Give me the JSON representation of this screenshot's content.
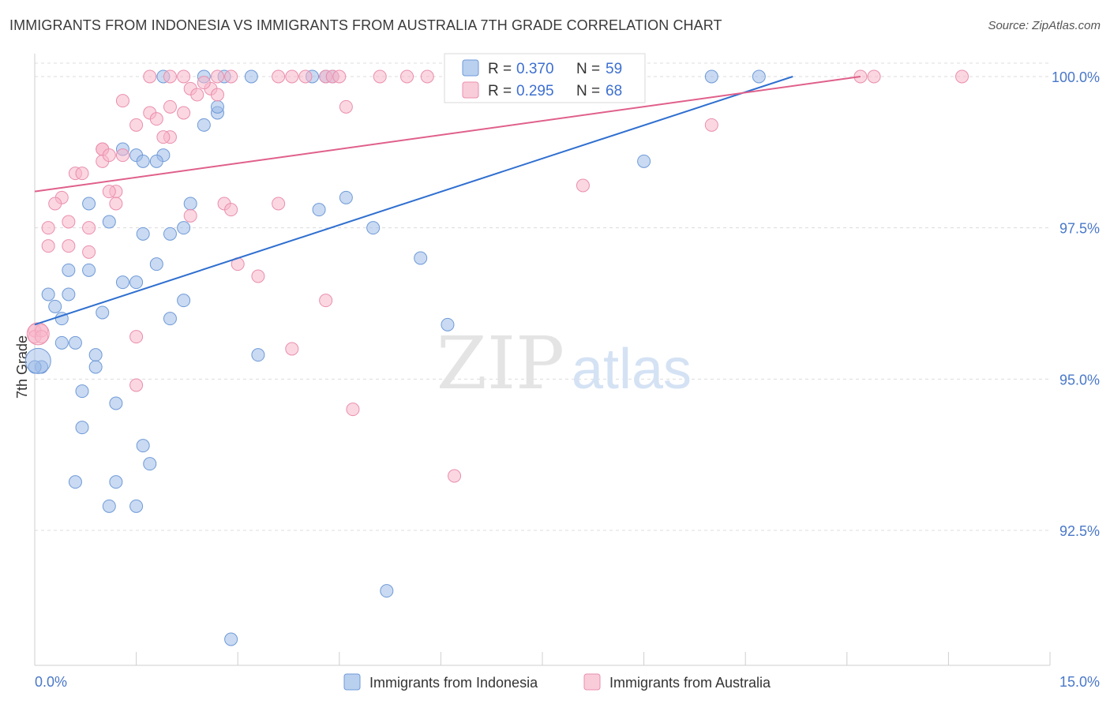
{
  "title": "IMMIGRANTS FROM INDONESIA VS IMMIGRANTS FROM AUSTRALIA 7TH GRADE CORRELATION CHART",
  "source": "Source: ZipAtlas.com",
  "watermark": {
    "zip": "ZIP",
    "atlas": "atlas"
  },
  "chart_data": {
    "type": "scatter",
    "title": "IMMIGRANTS FROM INDONESIA VS IMMIGRANTS FROM AUSTRALIA 7TH GRADE CORRELATION CHART",
    "xlabel": "",
    "ylabel": "7th Grade",
    "xlim": [
      0,
      15
    ],
    "ylim": [
      90.2,
      100.4
    ],
    "x_tick_labels": [
      {
        "value": 0,
        "label": "0.0%"
      },
      {
        "value": 15,
        "label": "15.0%"
      }
    ],
    "y_tick_labels": [
      {
        "value": 100,
        "label": "100.0%"
      },
      {
        "value": 97.5,
        "label": "97.5%"
      },
      {
        "value": 95,
        "label": "95.0%"
      },
      {
        "value": 92.5,
        "label": "92.5%"
      }
    ],
    "grid": true,
    "legend_position": "bottom",
    "series": [
      {
        "name": "Immigrants from Indonesia",
        "color": "#9dbce8",
        "stroke": "#6f9ad8",
        "line_color": "#2f6fd0",
        "R": "0.370",
        "N": "59",
        "trend": {
          "x0": 0,
          "y0": 95.9,
          "x1": 11.2,
          "y1": 100.0
        },
        "points": [
          [
            1.9,
            100.0
          ],
          [
            2.5,
            100.0
          ],
          [
            2.8,
            100.0
          ],
          [
            3.2,
            100.0
          ],
          [
            4.1,
            100.0
          ],
          [
            4.3,
            100.0
          ],
          [
            4.4,
            100.0
          ],
          [
            10.0,
            100.0
          ],
          [
            10.7,
            100.0
          ],
          [
            2.7,
            99.4
          ],
          [
            2.5,
            99.2
          ],
          [
            2.7,
            99.5
          ],
          [
            1.3,
            98.8
          ],
          [
            1.5,
            98.7
          ],
          [
            1.9,
            98.7
          ],
          [
            1.6,
            98.6
          ],
          [
            1.8,
            98.6
          ],
          [
            9.0,
            98.6
          ],
          [
            4.6,
            98.0
          ],
          [
            2.3,
            97.9
          ],
          [
            0.8,
            97.9
          ],
          [
            4.2,
            97.8
          ],
          [
            1.1,
            97.6
          ],
          [
            2.2,
            97.5
          ],
          [
            5.0,
            97.5
          ],
          [
            2.0,
            97.4
          ],
          [
            5.7,
            97.0
          ],
          [
            0.5,
            96.8
          ],
          [
            0.8,
            96.8
          ],
          [
            1.8,
            96.9
          ],
          [
            1.3,
            96.6
          ],
          [
            1.5,
            96.6
          ],
          [
            0.2,
            96.4
          ],
          [
            0.5,
            96.4
          ],
          [
            2.2,
            96.3
          ],
          [
            0.3,
            96.2
          ],
          [
            1.0,
            96.1
          ],
          [
            0.4,
            96.0
          ],
          [
            2.0,
            96.0
          ],
          [
            6.1,
            95.9
          ],
          [
            0.4,
            95.6
          ],
          [
            0.6,
            95.6
          ],
          [
            3.3,
            95.4
          ],
          [
            0.9,
            95.4
          ],
          [
            0.1,
            95.2
          ],
          [
            0.0,
            95.2
          ],
          [
            0.9,
            95.2
          ],
          [
            0.7,
            94.8
          ],
          [
            1.2,
            94.6
          ],
          [
            0.7,
            94.2
          ],
          [
            1.6,
            93.9
          ],
          [
            1.7,
            93.6
          ],
          [
            0.6,
            93.3
          ],
          [
            1.2,
            93.3
          ],
          [
            1.1,
            92.9
          ],
          [
            1.5,
            92.9
          ],
          [
            5.2,
            91.5
          ],
          [
            2.9,
            90.7
          ],
          [
            1.6,
            97.4
          ]
        ]
      },
      {
        "name": "Immigrants from Australia",
        "color": "#f7b6ca",
        "stroke": "#ea8fac",
        "line_color": "#e0608a",
        "R": "0.295",
        "N": "68",
        "trend": {
          "x0": 0,
          "y0": 98.1,
          "x1": 12.2,
          "y1": 100.0
        },
        "points": [
          [
            1.7,
            100.0
          ],
          [
            2.0,
            100.0
          ],
          [
            2.2,
            100.0
          ],
          [
            2.7,
            100.0
          ],
          [
            2.9,
            100.0
          ],
          [
            3.6,
            100.0
          ],
          [
            3.8,
            100.0
          ],
          [
            4.0,
            100.0
          ],
          [
            4.3,
            100.0
          ],
          [
            4.4,
            100.0
          ],
          [
            4.5,
            100.0
          ],
          [
            5.1,
            100.0
          ],
          [
            5.5,
            100.0
          ],
          [
            5.8,
            100.0
          ],
          [
            6.2,
            100.0
          ],
          [
            12.2,
            100.0
          ],
          [
            12.4,
            100.0
          ],
          [
            13.7,
            100.0
          ],
          [
            2.3,
            99.8
          ],
          [
            2.6,
            99.8
          ],
          [
            2.4,
            99.7
          ],
          [
            2.7,
            99.7
          ],
          [
            1.3,
            99.6
          ],
          [
            2.0,
            99.5
          ],
          [
            4.6,
            99.5
          ],
          [
            1.7,
            99.4
          ],
          [
            2.2,
            99.4
          ],
          [
            1.8,
            99.3
          ],
          [
            1.5,
            99.2
          ],
          [
            10.0,
            99.2
          ],
          [
            2.0,
            99.0
          ],
          [
            1.9,
            99.0
          ],
          [
            1.0,
            98.8
          ],
          [
            1.0,
            98.8
          ],
          [
            1.3,
            98.7
          ],
          [
            1.0,
            98.6
          ],
          [
            0.6,
            98.4
          ],
          [
            0.7,
            98.4
          ],
          [
            8.1,
            98.2
          ],
          [
            1.2,
            98.1
          ],
          [
            1.1,
            98.1
          ],
          [
            0.4,
            98.0
          ],
          [
            1.2,
            97.9
          ],
          [
            3.6,
            97.9
          ],
          [
            2.8,
            97.9
          ],
          [
            0.3,
            97.9
          ],
          [
            2.9,
            97.8
          ],
          [
            2.3,
            97.7
          ],
          [
            0.5,
            97.6
          ],
          [
            0.2,
            97.5
          ],
          [
            0.8,
            97.5
          ],
          [
            0.2,
            97.2
          ],
          [
            0.5,
            97.2
          ],
          [
            0.8,
            97.1
          ],
          [
            3.0,
            96.9
          ],
          [
            3.3,
            96.7
          ],
          [
            4.3,
            96.3
          ],
          [
            0.0,
            95.8
          ],
          [
            0.0,
            95.7
          ],
          [
            1.5,
            95.7
          ],
          [
            3.8,
            95.5
          ],
          [
            1.5,
            94.9
          ],
          [
            4.7,
            94.5
          ],
          [
            6.2,
            93.4
          ],
          [
            0.1,
            95.8
          ],
          [
            2.5,
            99.9
          ],
          [
            1.1,
            98.7
          ],
          [
            0.1,
            95.7
          ]
        ]
      }
    ]
  }
}
